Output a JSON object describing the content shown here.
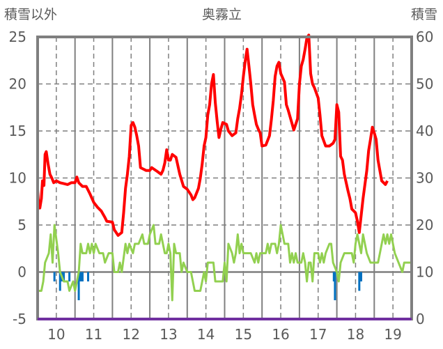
{
  "chart_data": {
    "type": "line",
    "title": "奥霧立",
    "ylabel_left": "積雪以外",
    "ylabel_right": "積雪",
    "xlim": [
      9.5,
      19.5
    ],
    "ylim_left": [
      -5,
      25
    ],
    "ylim_right": [
      0,
      60
    ],
    "x_ticks": [
      "10",
      "11",
      "12",
      "13",
      "14",
      "15",
      "16",
      "17",
      "18",
      "19"
    ],
    "y_ticks_left": [
      "25",
      "20",
      "15",
      "10",
      "5",
      "0",
      "-5"
    ],
    "y_ticks_right": [
      "60",
      "50",
      "40",
      "30",
      "20",
      "10",
      "0"
    ],
    "grid": true,
    "colors": {
      "red": "#ff0000",
      "green": "#92d050",
      "blue": "#0070c0",
      "purple": "#7030a0",
      "frame": "#7f7f7f"
    },
    "series": [
      {
        "name": "red",
        "axis": "left",
        "points": [
          [
            9.5,
            8.8
          ],
          [
            9.53,
            7.0
          ],
          [
            9.56,
            6.8
          ],
          [
            9.6,
            7.8
          ],
          [
            9.63,
            9.7
          ],
          [
            9.67,
            9.2
          ],
          [
            9.7,
            12.5
          ],
          [
            9.73,
            12.8
          ],
          [
            9.78,
            11.5
          ],
          [
            9.83,
            10.4
          ],
          [
            9.88,
            10
          ],
          [
            9.93,
            9.5
          ],
          [
            10.0,
            9.7
          ],
          [
            10.1,
            9.5
          ],
          [
            10.2,
            9.4
          ],
          [
            10.3,
            9.3
          ],
          [
            10.4,
            9.5
          ],
          [
            10.5,
            9.5
          ],
          [
            10.55,
            10.1
          ],
          [
            10.6,
            9.5
          ],
          [
            10.7,
            9.1
          ],
          [
            10.8,
            9.1
          ],
          [
            10.9,
            8.3
          ],
          [
            11.0,
            7.4
          ],
          [
            11.1,
            6.9
          ],
          [
            11.2,
            6.5
          ],
          [
            11.3,
            5.8
          ],
          [
            11.35,
            5.4
          ],
          [
            11.5,
            5.3
          ],
          [
            11.55,
            4.5
          ],
          [
            11.65,
            3.9
          ],
          [
            11.75,
            4.2
          ],
          [
            11.8,
            6.3
          ],
          [
            11.85,
            8.9
          ],
          [
            11.9,
            10.4
          ],
          [
            11.95,
            12.3
          ],
          [
            12.0,
            15.6
          ],
          [
            12.05,
            15.9
          ],
          [
            12.1,
            15.4
          ],
          [
            12.15,
            14.5
          ],
          [
            12.2,
            13.4
          ],
          [
            12.25,
            11.1
          ],
          [
            12.3,
            11
          ],
          [
            12.4,
            10.8
          ],
          [
            12.5,
            10.8
          ],
          [
            12.55,
            11.1
          ],
          [
            12.7,
            10.7
          ],
          [
            12.8,
            10.4
          ],
          [
            12.85,
            10.8
          ],
          [
            12.9,
            11.6
          ],
          [
            12.95,
            13
          ],
          [
            13.0,
            11.9
          ],
          [
            13.05,
            11.9
          ],
          [
            13.1,
            12.5
          ],
          [
            13.2,
            12.2
          ],
          [
            13.3,
            10.4
          ],
          [
            13.4,
            9.1
          ],
          [
            13.5,
            8.8
          ],
          [
            13.6,
            8.2
          ],
          [
            13.65,
            7.7
          ],
          [
            13.7,
            7.9
          ],
          [
            13.8,
            8.9
          ],
          [
            13.85,
            10
          ],
          [
            13.9,
            11.5
          ],
          [
            13.95,
            13.4
          ],
          [
            14.0,
            14.3
          ],
          [
            14.05,
            16.7
          ],
          [
            14.1,
            17.8
          ],
          [
            14.15,
            20
          ],
          [
            14.2,
            21
          ],
          [
            14.25,
            18
          ],
          [
            14.3,
            16
          ],
          [
            14.35,
            14.3
          ],
          [
            14.4,
            15.2
          ],
          [
            14.45,
            15.9
          ],
          [
            14.55,
            15.7
          ],
          [
            14.6,
            15
          ],
          [
            14.7,
            14.5
          ],
          [
            14.8,
            14.8
          ],
          [
            14.85,
            16.3
          ],
          [
            14.9,
            17.4
          ],
          [
            14.95,
            18.9
          ],
          [
            15.0,
            20.8
          ],
          [
            15.05,
            22.4
          ],
          [
            15.1,
            23.7
          ],
          [
            15.15,
            21.9
          ],
          [
            15.2,
            20
          ],
          [
            15.25,
            17.8
          ],
          [
            15.3,
            16.7
          ],
          [
            15.35,
            15.7
          ],
          [
            15.4,
            15.2
          ],
          [
            15.45,
            14.8
          ],
          [
            15.5,
            13.4
          ],
          [
            15.6,
            13.5
          ],
          [
            15.7,
            14.5
          ],
          [
            15.75,
            16.2
          ],
          [
            15.8,
            18.2
          ],
          [
            15.85,
            20.8
          ],
          [
            15.9,
            21.9
          ],
          [
            15.95,
            22.3
          ],
          [
            16.0,
            21.1
          ],
          [
            16.1,
            20.2
          ],
          [
            16.15,
            17.8
          ],
          [
            16.2,
            17.2
          ],
          [
            16.25,
            16.5
          ],
          [
            16.3,
            15.8
          ],
          [
            16.35,
            15.1
          ],
          [
            16.4,
            15.7
          ],
          [
            16.45,
            16.3
          ],
          [
            16.5,
            20
          ],
          [
            16.55,
            21.9
          ],
          [
            16.6,
            22.6
          ],
          [
            16.65,
            23.7
          ],
          [
            16.7,
            24.9
          ],
          [
            16.75,
            25.2
          ],
          [
            16.8,
            21.1
          ],
          [
            16.85,
            20
          ],
          [
            16.9,
            19.6
          ],
          [
            17.0,
            18.5
          ],
          [
            17.05,
            16.7
          ],
          [
            17.1,
            14.5
          ],
          [
            17.2,
            13.4
          ],
          [
            17.3,
            13.4
          ],
          [
            17.4,
            13.7
          ],
          [
            17.45,
            14.1
          ],
          [
            17.5,
            17.8
          ],
          [
            17.55,
            17
          ],
          [
            17.6,
            12.3
          ],
          [
            17.65,
            11.9
          ],
          [
            17.7,
            10.4
          ],
          [
            17.8,
            8.6
          ],
          [
            17.85,
            7.8
          ],
          [
            17.9,
            6.7
          ],
          [
            18.0,
            6.3
          ],
          [
            18.05,
            5.4
          ],
          [
            18.1,
            4.2
          ],
          [
            18.15,
            6
          ],
          [
            18.2,
            7.8
          ],
          [
            18.3,
            10.8
          ],
          [
            18.35,
            12.9
          ],
          [
            18.4,
            14.1
          ],
          [
            18.45,
            15.4
          ],
          [
            18.5,
            14.8
          ],
          [
            18.55,
            14.1
          ],
          [
            18.6,
            11.9
          ],
          [
            18.7,
            9.7
          ],
          [
            18.8,
            9.3
          ],
          [
            18.85,
            9.7
          ]
        ]
      },
      {
        "name": "green",
        "axis": "left",
        "points": [
          [
            9.5,
            -2
          ],
          [
            9.6,
            -2
          ],
          [
            9.65,
            -1
          ],
          [
            9.7,
            1
          ],
          [
            9.8,
            2
          ],
          [
            9.85,
            4
          ],
          [
            9.9,
            1
          ],
          [
            9.95,
            5
          ],
          [
            10.05,
            2
          ],
          [
            10.1,
            0
          ],
          [
            10.2,
            -1
          ],
          [
            10.3,
            -1
          ],
          [
            10.35,
            -2
          ],
          [
            10.45,
            -1
          ],
          [
            10.5,
            -2
          ],
          [
            10.55,
            -1
          ],
          [
            10.6,
            0
          ],
          [
            10.65,
            3
          ],
          [
            10.7,
            2
          ],
          [
            10.8,
            2
          ],
          [
            10.85,
            3
          ],
          [
            10.9,
            2
          ],
          [
            10.95,
            3
          ],
          [
            11.0,
            2
          ],
          [
            11.05,
            3
          ],
          [
            11.15,
            2
          ],
          [
            11.25,
            2
          ],
          [
            11.3,
            1
          ],
          [
            11.4,
            2
          ],
          [
            11.5,
            2
          ],
          [
            11.55,
            0
          ],
          [
            11.65,
            0
          ],
          [
            11.7,
            1
          ],
          [
            11.75,
            0
          ],
          [
            11.85,
            3
          ],
          [
            11.9,
            2
          ],
          [
            11.95,
            3
          ],
          [
            12.05,
            2
          ],
          [
            12.1,
            3
          ],
          [
            12.2,
            3
          ],
          [
            12.3,
            4
          ],
          [
            12.35,
            3
          ],
          [
            12.45,
            3
          ],
          [
            12.5,
            4
          ],
          [
            12.6,
            5
          ],
          [
            12.65,
            3
          ],
          [
            12.75,
            3
          ],
          [
            12.8,
            4
          ],
          [
            12.9,
            2
          ],
          [
            12.95,
            2
          ],
          [
            13.0,
            3
          ],
          [
            13.05,
            2
          ],
          [
            13.1,
            -3
          ],
          [
            13.15,
            3
          ],
          [
            13.2,
            2
          ],
          [
            13.3,
            2
          ],
          [
            13.35,
            0
          ],
          [
            13.4,
            1
          ],
          [
            13.5,
            0
          ],
          [
            13.6,
            0
          ],
          [
            13.7,
            -2
          ],
          [
            13.85,
            -2
          ],
          [
            13.9,
            -1
          ],
          [
            13.95,
            0
          ],
          [
            14.0,
            -1
          ],
          [
            14.05,
            1
          ],
          [
            14.2,
            1
          ],
          [
            14.25,
            -1
          ],
          [
            14.45,
            -1
          ],
          [
            14.5,
            1
          ],
          [
            14.55,
            -1
          ],
          [
            14.6,
            3
          ],
          [
            14.7,
            2
          ],
          [
            14.75,
            1
          ],
          [
            14.8,
            2
          ],
          [
            14.85,
            4
          ],
          [
            14.9,
            2
          ],
          [
            14.95,
            3
          ],
          [
            15.0,
            2
          ],
          [
            15.2,
            2
          ],
          [
            15.3,
            1
          ],
          [
            15.35,
            2
          ],
          [
            15.4,
            1
          ],
          [
            15.45,
            2
          ],
          [
            15.6,
            2
          ],
          [
            15.65,
            3
          ],
          [
            15.7,
            2
          ],
          [
            15.75,
            3
          ],
          [
            15.85,
            3
          ],
          [
            15.9,
            2
          ],
          [
            15.95,
            3
          ],
          [
            16.0,
            5
          ],
          [
            16.1,
            3
          ],
          [
            16.2,
            3
          ],
          [
            16.25,
            1
          ],
          [
            16.3,
            2
          ],
          [
            16.35,
            1
          ],
          [
            16.4,
            2
          ],
          [
            16.45,
            1
          ],
          [
            16.55,
            1
          ],
          [
            16.6,
            2
          ],
          [
            16.65,
            1
          ],
          [
            16.7,
            -1
          ],
          [
            16.75,
            1
          ],
          [
            16.8,
            1
          ],
          [
            16.85,
            -1
          ],
          [
            16.9,
            2
          ],
          [
            17.0,
            2
          ],
          [
            17.05,
            1
          ],
          [
            17.1,
            2
          ],
          [
            17.15,
            1
          ],
          [
            17.2,
            2
          ],
          [
            17.3,
            3
          ],
          [
            17.35,
            3
          ],
          [
            17.4,
            1
          ],
          [
            17.5,
            0
          ],
          [
            17.55,
            -1
          ],
          [
            17.6,
            1
          ],
          [
            17.7,
            2
          ],
          [
            17.9,
            2
          ],
          [
            17.95,
            1
          ],
          [
            18.0,
            3
          ],
          [
            18.05,
            4
          ],
          [
            18.15,
            2
          ],
          [
            18.2,
            4
          ],
          [
            18.3,
            2
          ],
          [
            18.4,
            1
          ],
          [
            18.6,
            1
          ],
          [
            18.65,
            2
          ],
          [
            18.75,
            4
          ],
          [
            18.8,
            3
          ],
          [
            18.85,
            4
          ],
          [
            18.9,
            3
          ],
          [
            18.95,
            4
          ],
          [
            19.05,
            2
          ],
          [
            19.25,
            0
          ],
          [
            19.3,
            1
          ],
          [
            19.5,
            1
          ]
        ]
      },
      {
        "name": "purple",
        "axis": "right",
        "points": [
          [
            9.5,
            0
          ],
          [
            19.5,
            0
          ]
        ]
      }
    ],
    "bars": {
      "name": "blue",
      "axis": "left",
      "points": [
        [
          9.95,
          -1
        ],
        [
          10.1,
          -2
        ],
        [
          10.15,
          -1
        ],
        [
          10.2,
          -1
        ],
        [
          10.35,
          -1
        ],
        [
          10.6,
          -3
        ],
        [
          10.65,
          -1
        ],
        [
          10.7,
          -1
        ],
        [
          10.85,
          -1
        ],
        [
          17.42,
          -1
        ],
        [
          17.45,
          -3
        ],
        [
          18.1,
          -2
        ],
        [
          18.15,
          -1
        ]
      ]
    }
  }
}
